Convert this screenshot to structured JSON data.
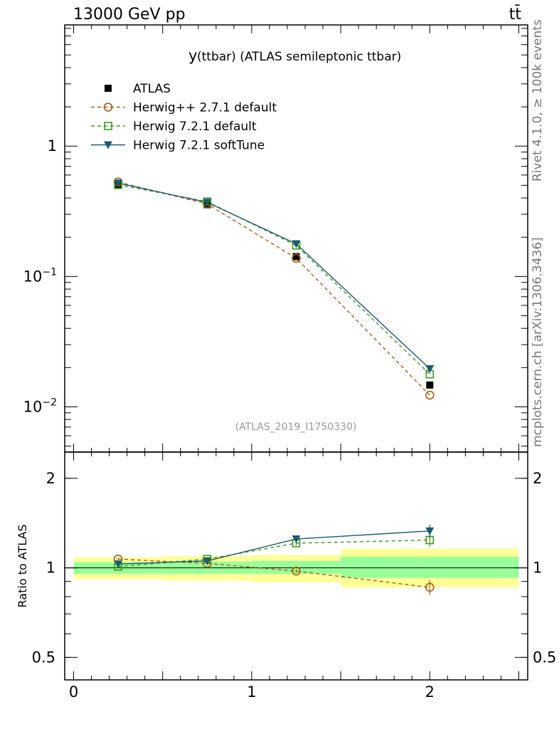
{
  "header": {
    "left": "13000 GeV pp",
    "right": "tt̄"
  },
  "side_texts": {
    "rivet": "Rivet 4.1.0, ≥ 100k events",
    "source": "mcplots.cern.ch [arXiv:1306.3436]"
  },
  "plot": {
    "title_var": "y",
    "title_rest": "(ttbar) (ATLAS semileptonic ttbar)",
    "analysis_id": "(ATLAS_2019_I1750330)",
    "ratio_ylabel": "Ratio to ATLAS"
  },
  "colors": {
    "atlas": "#000000",
    "herwigpp": "#b05a10",
    "herwig721": "#3a9a1a",
    "softtune": "#1b5a70",
    "band_inner": "#99ff99",
    "band_outer": "#ffff99"
  },
  "chart_data": [
    {
      "type": "line",
      "yscale": "log",
      "xlim": [
        -0.05,
        2.55
      ],
      "ylim": [
        0.0045,
        8.5
      ],
      "yticks": [
        {
          "value": 1,
          "base": "1",
          "exp": ""
        },
        {
          "value": 0.1,
          "base": "10",
          "exp": "−1"
        },
        {
          "value": 0.01,
          "base": "10",
          "exp": "−2"
        }
      ],
      "x": [
        0.25,
        0.75,
        1.25,
        2.0
      ],
      "legend_position": "top-left",
      "series": [
        {
          "name": "ATLAS",
          "marker": "filled-square",
          "style": "points",
          "values": [
            0.5,
            0.355,
            0.142,
            0.0147
          ]
        },
        {
          "name": "Herwig++ 2.7.1 default",
          "marker": "open-circle",
          "style": "dashed",
          "values": [
            0.53,
            0.36,
            0.138,
            0.0123
          ]
        },
        {
          "name": "Herwig 7.2.1 default",
          "marker": "open-square",
          "style": "dashed",
          "values": [
            0.505,
            0.375,
            0.173,
            0.0178
          ]
        },
        {
          "name": "Herwig 7.2.1 softTune",
          "marker": "filled-triangle-down",
          "style": "solid",
          "values": [
            0.52,
            0.37,
            0.178,
            0.0196
          ]
        }
      ]
    },
    {
      "type": "line",
      "yscale": "log",
      "xlim": [
        -0.05,
        2.55
      ],
      "ylim": [
        0.42,
        2.45
      ],
      "ylabel": "Ratio to ATLAS",
      "yticks": [
        {
          "value": 0.5,
          "label": "0.5"
        },
        {
          "value": 1,
          "label": "1"
        },
        {
          "value": 2,
          "label": "2"
        }
      ],
      "xticks": [
        {
          "value": 0,
          "label": "0"
        },
        {
          "value": 1,
          "label": "1"
        },
        {
          "value": 2,
          "label": "2"
        }
      ],
      "x": [
        0.25,
        0.75,
        1.25,
        2.0
      ],
      "bands": [
        {
          "x_low": 0.0,
          "x_high": 0.5,
          "inner": [
            0.955,
            1.045
          ],
          "outer": [
            0.915,
            1.085
          ]
        },
        {
          "x_low": 0.5,
          "x_high": 1.0,
          "inner": [
            0.955,
            1.05
          ],
          "outer": [
            0.905,
            1.095
          ]
        },
        {
          "x_low": 1.0,
          "x_high": 1.5,
          "inner": [
            0.955,
            1.055
          ],
          "outer": [
            0.895,
            1.105
          ]
        },
        {
          "x_low": 1.5,
          "x_high": 2.5,
          "inner": [
            0.925,
            1.09
          ],
          "outer": [
            0.86,
            1.16
          ]
        }
      ],
      "series": [
        {
          "name": "Herwig++ 2.7.1 default",
          "values": [
            1.07,
            1.035,
            0.975,
            0.86
          ],
          "errors": [
            0.01,
            0.01,
            0.015,
            0.05
          ]
        },
        {
          "name": "Herwig 7.2.1 default",
          "values": [
            1.01,
            1.07,
            1.21,
            1.24
          ],
          "errors": [
            0.01,
            0.01,
            0.02,
            0.06
          ]
        },
        {
          "name": "Herwig 7.2.1 softTune",
          "values": [
            1.03,
            1.055,
            1.25,
            1.33
          ],
          "errors": [
            0.01,
            0.01,
            0.02,
            0.07
          ]
        }
      ]
    }
  ]
}
